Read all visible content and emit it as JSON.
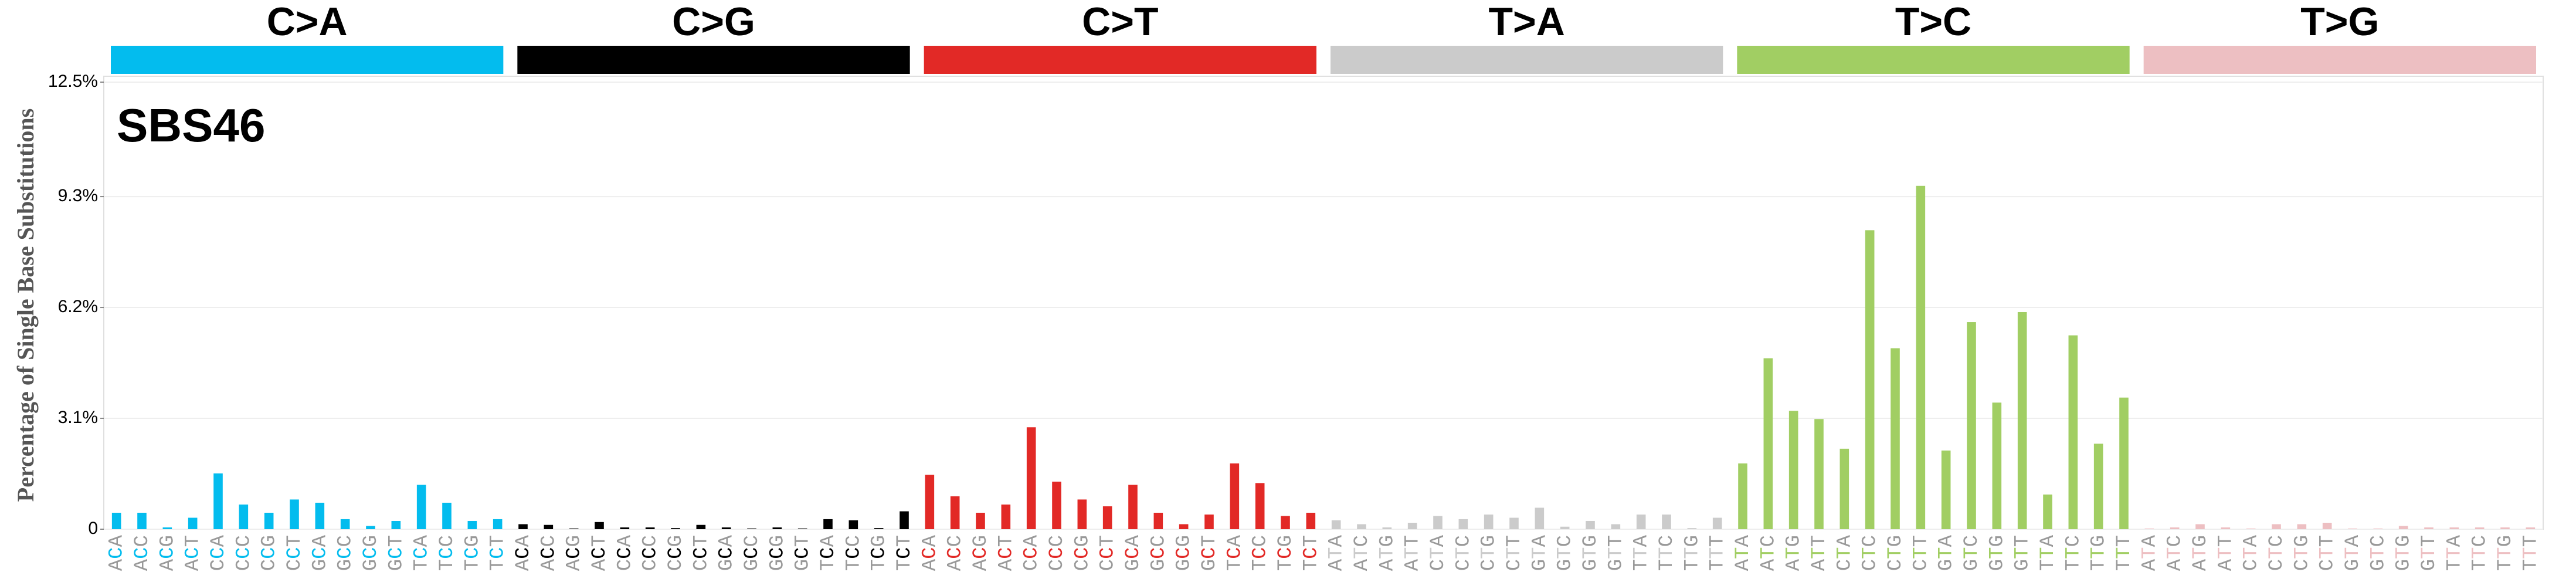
{
  "chart_data": {
    "type": "bar",
    "title": "SBS46",
    "ylabel": "Percentage of Single Base Substitutions",
    "ylim": [
      0,
      12.5
    ],
    "yticks": [
      0,
      {
        "value": 3.1,
        "label": "3.1%"
      },
      {
        "value": 6.2,
        "label": "6.2%"
      },
      {
        "value": 9.3,
        "label": "9.3%"
      },
      {
        "value": 12.5,
        "label": "12.5%"
      }
    ],
    "grid": true,
    "groups": [
      {
        "name": "C>A",
        "color": "#03bcee"
      },
      {
        "name": "C>G",
        "color": "#000000"
      },
      {
        "name": "C>T",
        "color": "#e22926"
      },
      {
        "name": "T>A",
        "color": "#cbcbcb"
      },
      {
        "name": "T>C",
        "color": "#a1ce63"
      },
      {
        "name": "T>G",
        "color": "#edbfc2"
      }
    ],
    "categories": [
      "ACA",
      "ACC",
      "ACG",
      "ACT",
      "CCA",
      "CCC",
      "CCG",
      "CCT",
      "GCA",
      "GCC",
      "GCG",
      "GCT",
      "TCA",
      "TCC",
      "TCG",
      "TCT",
      "ACA",
      "ACC",
      "ACG",
      "ACT",
      "CCA",
      "CCC",
      "CCG",
      "CCT",
      "GCA",
      "GCC",
      "GCG",
      "GCT",
      "TCA",
      "TCC",
      "TCG",
      "TCT",
      "ACA",
      "ACC",
      "ACG",
      "ACT",
      "CCA",
      "CCC",
      "CCG",
      "CCT",
      "GCA",
      "GCC",
      "GCG",
      "GCT",
      "TCA",
      "TCC",
      "TCG",
      "TCT",
      "ATA",
      "ATC",
      "ATG",
      "ATT",
      "CTA",
      "CTC",
      "CTG",
      "CTT",
      "GTA",
      "GTC",
      "GTG",
      "GTT",
      "TTA",
      "TTC",
      "TTG",
      "TTT",
      "ATA",
      "ATC",
      "ATG",
      "ATT",
      "CTA",
      "CTC",
      "CTG",
      "CTT",
      "GTA",
      "GTC",
      "GTG",
      "GTT",
      "TTA",
      "TTC",
      "TTG",
      "TTT",
      "ATA",
      "ATC",
      "ATG",
      "ATT",
      "CTA",
      "CTC",
      "CTG",
      "CTT",
      "GTA",
      "GTC",
      "GTG",
      "GTT",
      "TTA",
      "TTC",
      "TTG",
      "TTT"
    ],
    "values": [
      0.46,
      0.46,
      0.05,
      0.32,
      1.56,
      0.69,
      0.46,
      0.83,
      0.74,
      0.28,
      0.09,
      0.23,
      1.24,
      0.74,
      0.23,
      0.28,
      0.14,
      0.12,
      0.02,
      0.2,
      0.05,
      0.05,
      0.03,
      0.12,
      0.05,
      0.02,
      0.05,
      0.02,
      0.28,
      0.25,
      0.03,
      0.5,
      1.52,
      0.92,
      0.46,
      0.69,
      2.85,
      1.33,
      0.83,
      0.64,
      1.24,
      0.46,
      0.14,
      0.41,
      1.84,
      1.29,
      0.37,
      0.46,
      0.25,
      0.14,
      0.05,
      0.18,
      0.37,
      0.28,
      0.41,
      0.32,
      0.6,
      0.07,
      0.23,
      0.14,
      0.41,
      0.41,
      0.03,
      0.32,
      1.84,
      4.78,
      3.31,
      3.08,
      2.25,
      8.36,
      5.06,
      9.6,
      2.2,
      5.79,
      3.54,
      6.07,
      0.97,
      5.42,
      2.39,
      3.68,
      0.02,
      0.05,
      0.14,
      0.05,
      0.02,
      0.14,
      0.14,
      0.18,
      0.02,
      0.02,
      0.09,
      0.05,
      0.05,
      0.05,
      0.05,
      0.05
    ]
  }
}
